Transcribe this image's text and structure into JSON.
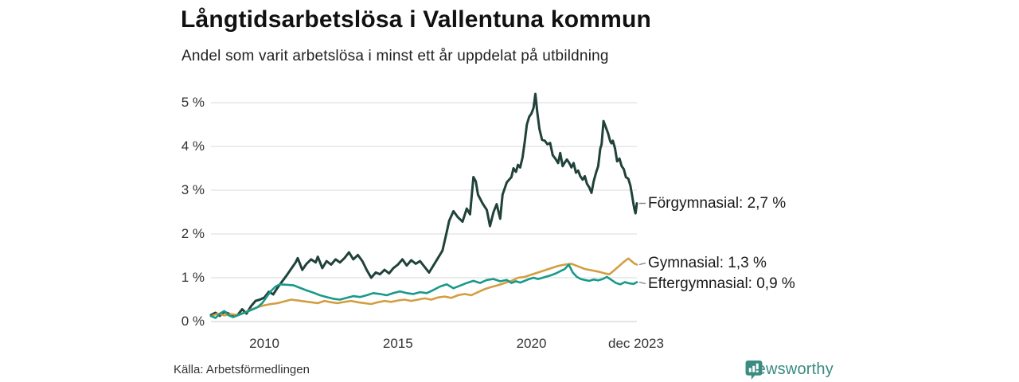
{
  "chart_data": {
    "type": "line",
    "title": "Långtidsarbetslösa i Vallentuna kommun",
    "subtitle": "Andel som varit arbetslösa i minst ett år uppdelat på utbildning",
    "source": "Källa: Arbetsförmedlingen",
    "xlabel": "",
    "ylabel": "",
    "grid": true,
    "legend_position": "end-of-line-labels-right",
    "x_domain": [
      2008,
      2023.95
    ],
    "ylim": [
      0,
      5.3
    ],
    "y_ticks": [
      {
        "value": 0,
        "label": "0 %"
      },
      {
        "value": 1,
        "label": "1 %"
      },
      {
        "value": 2,
        "label": "2 %"
      },
      {
        "value": 3,
        "label": "3 %"
      },
      {
        "value": 4,
        "label": "4 %"
      },
      {
        "value": 5,
        "label": "5 %"
      }
    ],
    "x_ticks": [
      {
        "value": 2010,
        "label": "2010"
      },
      {
        "value": 2015,
        "label": "2015"
      },
      {
        "value": 2020,
        "label": "2020"
      },
      {
        "value": 2023.92,
        "label": "dec 2023"
      }
    ],
    "series": [
      {
        "name": "Forgymnasial",
        "label": "Förgymnasial: 2,7 %",
        "end_value": "2,7 %",
        "color": "#20423a",
        "width": 3,
        "data": [
          [
            2008.0,
            0.15
          ],
          [
            2008.17,
            0.2
          ],
          [
            2008.33,
            0.13
          ],
          [
            2008.5,
            0.22
          ],
          [
            2008.67,
            0.18
          ],
          [
            2008.83,
            0.12
          ],
          [
            2009.0,
            0.15
          ],
          [
            2009.17,
            0.28
          ],
          [
            2009.33,
            0.18
          ],
          [
            2009.5,
            0.35
          ],
          [
            2009.67,
            0.47
          ],
          [
            2009.83,
            0.5
          ],
          [
            2010.0,
            0.55
          ],
          [
            2010.17,
            0.68
          ],
          [
            2010.33,
            0.62
          ],
          [
            2010.5,
            0.78
          ],
          [
            2010.67,
            0.92
          ],
          [
            2010.83,
            1.05
          ],
          [
            2011.0,
            1.2
          ],
          [
            2011.17,
            1.35
          ],
          [
            2011.25,
            1.45
          ],
          [
            2011.42,
            1.18
          ],
          [
            2011.58,
            1.32
          ],
          [
            2011.75,
            1.42
          ],
          [
            2011.92,
            1.35
          ],
          [
            2012.0,
            1.48
          ],
          [
            2012.17,
            1.22
          ],
          [
            2012.33,
            1.38
          ],
          [
            2012.5,
            1.3
          ],
          [
            2012.67,
            1.42
          ],
          [
            2012.83,
            1.35
          ],
          [
            2013.0,
            1.45
          ],
          [
            2013.17,
            1.58
          ],
          [
            2013.33,
            1.42
          ],
          [
            2013.5,
            1.52
          ],
          [
            2013.67,
            1.38
          ],
          [
            2013.83,
            1.18
          ],
          [
            2014.0,
            1.0
          ],
          [
            2014.17,
            1.12
          ],
          [
            2014.33,
            1.08
          ],
          [
            2014.5,
            1.18
          ],
          [
            2014.67,
            1.1
          ],
          [
            2014.83,
            1.22
          ],
          [
            2015.0,
            1.3
          ],
          [
            2015.17,
            1.42
          ],
          [
            2015.33,
            1.28
          ],
          [
            2015.5,
            1.4
          ],
          [
            2015.67,
            1.32
          ],
          [
            2015.83,
            1.38
          ],
          [
            2016.0,
            1.25
          ],
          [
            2016.17,
            1.12
          ],
          [
            2016.33,
            1.28
          ],
          [
            2016.5,
            1.45
          ],
          [
            2016.67,
            1.62
          ],
          [
            2016.83,
            2.05
          ],
          [
            2016.92,
            2.3
          ],
          [
            2017.08,
            2.52
          ],
          [
            2017.25,
            2.38
          ],
          [
            2017.42,
            2.28
          ],
          [
            2017.58,
            2.58
          ],
          [
            2017.7,
            2.45
          ],
          [
            2017.83,
            3.3
          ],
          [
            2017.92,
            3.2
          ],
          [
            2018.0,
            2.9
          ],
          [
            2018.17,
            2.7
          ],
          [
            2018.33,
            2.55
          ],
          [
            2018.45,
            2.18
          ],
          [
            2018.58,
            2.5
          ],
          [
            2018.7,
            2.68
          ],
          [
            2018.83,
            2.35
          ],
          [
            2018.92,
            2.9
          ],
          [
            2019.08,
            3.18
          ],
          [
            2019.25,
            3.3
          ],
          [
            2019.33,
            3.5
          ],
          [
            2019.42,
            3.42
          ],
          [
            2019.5,
            3.58
          ],
          [
            2019.58,
            3.52
          ],
          [
            2019.67,
            3.75
          ],
          [
            2019.75,
            4.1
          ],
          [
            2019.83,
            4.5
          ],
          [
            2019.92,
            4.68
          ],
          [
            2020.0,
            4.75
          ],
          [
            2020.08,
            4.88
          ],
          [
            2020.15,
            5.2
          ],
          [
            2020.22,
            4.78
          ],
          [
            2020.3,
            4.4
          ],
          [
            2020.4,
            4.15
          ],
          [
            2020.5,
            4.13
          ],
          [
            2020.6,
            4.05
          ],
          [
            2020.7,
            4.08
          ],
          [
            2020.8,
            3.8
          ],
          [
            2020.9,
            3.72
          ],
          [
            2021.0,
            3.62
          ],
          [
            2021.08,
            3.85
          ],
          [
            2021.17,
            3.55
          ],
          [
            2021.25,
            3.63
          ],
          [
            2021.33,
            3.7
          ],
          [
            2021.42,
            3.62
          ],
          [
            2021.5,
            3.52
          ],
          [
            2021.58,
            3.62
          ],
          [
            2021.67,
            3.4
          ],
          [
            2021.75,
            3.45
          ],
          [
            2021.83,
            3.32
          ],
          [
            2021.92,
            3.24
          ],
          [
            2022.0,
            3.32
          ],
          [
            2022.08,
            3.15
          ],
          [
            2022.17,
            3.06
          ],
          [
            2022.25,
            2.94
          ],
          [
            2022.33,
            3.2
          ],
          [
            2022.42,
            3.4
          ],
          [
            2022.5,
            3.55
          ],
          [
            2022.58,
            3.95
          ],
          [
            2022.63,
            4.05
          ],
          [
            2022.7,
            4.58
          ],
          [
            2022.78,
            4.45
          ],
          [
            2022.87,
            4.3
          ],
          [
            2022.95,
            4.12
          ],
          [
            2023.0,
            4.07
          ],
          [
            2023.05,
            4.13
          ],
          [
            2023.13,
            3.96
          ],
          [
            2023.21,
            3.66
          ],
          [
            2023.3,
            3.72
          ],
          [
            2023.38,
            3.55
          ],
          [
            2023.46,
            3.48
          ],
          [
            2023.54,
            3.3
          ],
          [
            2023.63,
            3.26
          ],
          [
            2023.71,
            3.1
          ],
          [
            2023.77,
            2.88
          ],
          [
            2023.82,
            2.7
          ],
          [
            2023.86,
            2.56
          ],
          [
            2023.9,
            2.47
          ],
          [
            2023.95,
            2.7
          ]
        ]
      },
      {
        "name": "Gymnasial",
        "label": "Gymnasial: 1,3 %",
        "end_value": "1,3 %",
        "color": "#d29e41",
        "width": 2.6,
        "data": [
          [
            2008.0,
            0.12
          ],
          [
            2008.25,
            0.18
          ],
          [
            2008.5,
            0.14
          ],
          [
            2008.75,
            0.17
          ],
          [
            2009.0,
            0.15
          ],
          [
            2009.25,
            0.2
          ],
          [
            2009.5,
            0.27
          ],
          [
            2009.75,
            0.33
          ],
          [
            2010.0,
            0.37
          ],
          [
            2010.25,
            0.4
          ],
          [
            2010.5,
            0.42
          ],
          [
            2010.75,
            0.46
          ],
          [
            2011.0,
            0.5
          ],
          [
            2011.25,
            0.48
          ],
          [
            2011.5,
            0.46
          ],
          [
            2011.75,
            0.44
          ],
          [
            2012.0,
            0.42
          ],
          [
            2012.25,
            0.47
          ],
          [
            2012.5,
            0.44
          ],
          [
            2012.75,
            0.42
          ],
          [
            2013.0,
            0.45
          ],
          [
            2013.25,
            0.47
          ],
          [
            2013.5,
            0.44
          ],
          [
            2013.75,
            0.42
          ],
          [
            2014.0,
            0.4
          ],
          [
            2014.25,
            0.44
          ],
          [
            2014.5,
            0.47
          ],
          [
            2014.75,
            0.45
          ],
          [
            2015.0,
            0.48
          ],
          [
            2015.25,
            0.5
          ],
          [
            2015.5,
            0.47
          ],
          [
            2015.75,
            0.5
          ],
          [
            2016.0,
            0.53
          ],
          [
            2016.25,
            0.5
          ],
          [
            2016.5,
            0.55
          ],
          [
            2016.75,
            0.57
          ],
          [
            2017.0,
            0.54
          ],
          [
            2017.25,
            0.6
          ],
          [
            2017.5,
            0.63
          ],
          [
            2017.75,
            0.6
          ],
          [
            2018.0,
            0.67
          ],
          [
            2018.25,
            0.74
          ],
          [
            2018.5,
            0.79
          ],
          [
            2018.75,
            0.83
          ],
          [
            2019.0,
            0.88
          ],
          [
            2019.25,
            0.93
          ],
          [
            2019.5,
            1.0
          ],
          [
            2019.75,
            1.02
          ],
          [
            2020.0,
            1.07
          ],
          [
            2020.25,
            1.12
          ],
          [
            2020.5,
            1.17
          ],
          [
            2020.75,
            1.22
          ],
          [
            2021.0,
            1.27
          ],
          [
            2021.25,
            1.3
          ],
          [
            2021.5,
            1.32
          ],
          [
            2021.75,
            1.26
          ],
          [
            2022.0,
            1.2
          ],
          [
            2022.25,
            1.17
          ],
          [
            2022.5,
            1.14
          ],
          [
            2022.75,
            1.1
          ],
          [
            2022.92,
            1.08
          ],
          [
            2023.08,
            1.16
          ],
          [
            2023.25,
            1.25
          ],
          [
            2023.42,
            1.34
          ],
          [
            2023.54,
            1.4
          ],
          [
            2023.63,
            1.44
          ],
          [
            2023.75,
            1.38
          ],
          [
            2023.85,
            1.33
          ],
          [
            2023.95,
            1.3
          ]
        ]
      },
      {
        "name": "Eftergymnasial",
        "label": "Eftergymnasial: 0,9 %",
        "end_value": "0,9 %",
        "color": "#18998a",
        "width": 2.6,
        "data": [
          [
            2008.0,
            0.13
          ],
          [
            2008.17,
            0.08
          ],
          [
            2008.33,
            0.18
          ],
          [
            2008.5,
            0.24
          ],
          [
            2008.67,
            0.14
          ],
          [
            2008.83,
            0.1
          ],
          [
            2009.0,
            0.14
          ],
          [
            2009.25,
            0.2
          ],
          [
            2009.5,
            0.26
          ],
          [
            2009.75,
            0.33
          ],
          [
            2009.92,
            0.42
          ],
          [
            2010.08,
            0.56
          ],
          [
            2010.25,
            0.7
          ],
          [
            2010.42,
            0.8
          ],
          [
            2010.58,
            0.85
          ],
          [
            2010.83,
            0.84
          ],
          [
            2011.08,
            0.83
          ],
          [
            2011.33,
            0.77
          ],
          [
            2011.58,
            0.71
          ],
          [
            2011.83,
            0.66
          ],
          [
            2012.08,
            0.6
          ],
          [
            2012.33,
            0.56
          ],
          [
            2012.58,
            0.52
          ],
          [
            2012.83,
            0.5
          ],
          [
            2013.08,
            0.54
          ],
          [
            2013.33,
            0.58
          ],
          [
            2013.58,
            0.56
          ],
          [
            2013.83,
            0.6
          ],
          [
            2014.08,
            0.65
          ],
          [
            2014.33,
            0.63
          ],
          [
            2014.58,
            0.6
          ],
          [
            2014.83,
            0.65
          ],
          [
            2015.08,
            0.69
          ],
          [
            2015.33,
            0.65
          ],
          [
            2015.58,
            0.63
          ],
          [
            2015.83,
            0.67
          ],
          [
            2016.08,
            0.65
          ],
          [
            2016.33,
            0.72
          ],
          [
            2016.58,
            0.8
          ],
          [
            2016.83,
            0.85
          ],
          [
            2017.08,
            0.76
          ],
          [
            2017.33,
            0.82
          ],
          [
            2017.58,
            0.88
          ],
          [
            2017.83,
            0.93
          ],
          [
            2018.08,
            0.88
          ],
          [
            2018.33,
            0.95
          ],
          [
            2018.58,
            0.97
          ],
          [
            2018.83,
            0.92
          ],
          [
            2019.08,
            0.95
          ],
          [
            2019.25,
            0.88
          ],
          [
            2019.42,
            0.92
          ],
          [
            2019.58,
            0.89
          ],
          [
            2019.75,
            0.93
          ],
          [
            2019.92,
            0.97
          ],
          [
            2020.08,
            1.0
          ],
          [
            2020.25,
            0.97
          ],
          [
            2020.42,
            1.0
          ],
          [
            2020.58,
            1.03
          ],
          [
            2020.75,
            1.06
          ],
          [
            2020.92,
            1.1
          ],
          [
            2021.08,
            1.15
          ],
          [
            2021.25,
            1.2
          ],
          [
            2021.4,
            1.3
          ],
          [
            2021.55,
            1.12
          ],
          [
            2021.7,
            1.02
          ],
          [
            2021.85,
            0.97
          ],
          [
            2022.0,
            0.95
          ],
          [
            2022.17,
            0.93
          ],
          [
            2022.33,
            0.96
          ],
          [
            2022.5,
            0.94
          ],
          [
            2022.67,
            0.97
          ],
          [
            2022.83,
            1.02
          ],
          [
            2023.0,
            0.95
          ],
          [
            2023.17,
            0.88
          ],
          [
            2023.33,
            0.85
          ],
          [
            2023.5,
            0.9
          ],
          [
            2023.67,
            0.87
          ],
          [
            2023.83,
            0.86
          ],
          [
            2023.95,
            0.9
          ]
        ]
      }
    ],
    "colors": {
      "grid": "#d8d8d8",
      "baseline": "#c9c9c9",
      "connector": "#808080",
      "accent_dark": "#20423a",
      "accent_orange": "#d29e41",
      "accent_teal": "#18998a"
    }
  },
  "branding": {
    "logo_text": "Newsworthy",
    "logo_color": "#3a8b80",
    "logo_icon": "bar-chart-bubble-icon"
  }
}
